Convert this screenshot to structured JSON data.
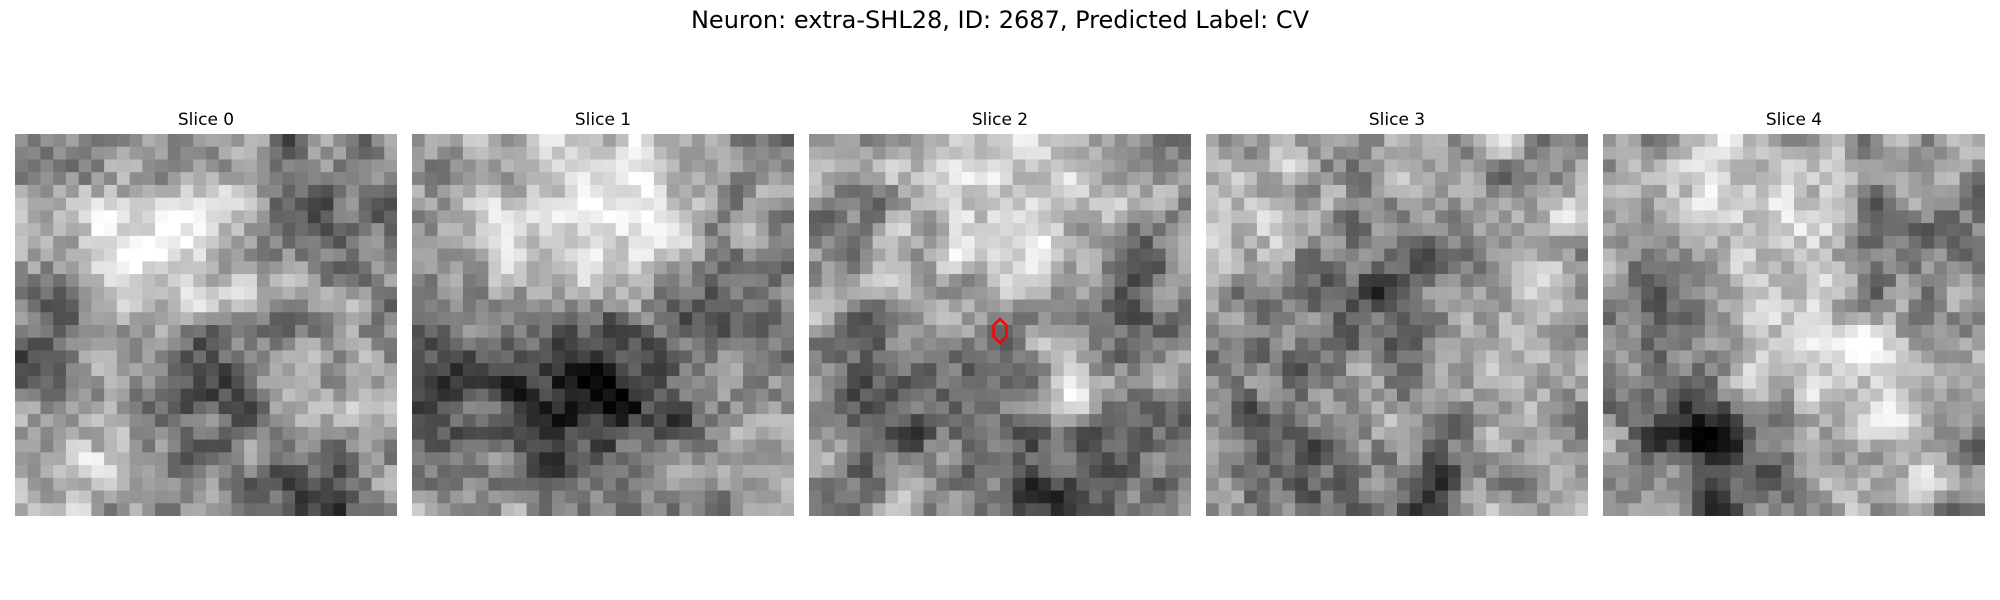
{
  "figure": {
    "title": "Neuron: extra-SHL28, ID: 2687, Predicted Label: CV"
  },
  "slices": [
    {
      "label": "Slice 0",
      "has_marker": false
    },
    {
      "label": "Slice 1",
      "has_marker": false
    },
    {
      "label": "Slice 2",
      "has_marker": true
    },
    {
      "label": "Slice 3",
      "has_marker": false
    },
    {
      "label": "Slice 4",
      "has_marker": false
    }
  ],
  "colors": {
    "marker": "#ff0000",
    "background": "#ffffff"
  },
  "grid_size": 30
}
